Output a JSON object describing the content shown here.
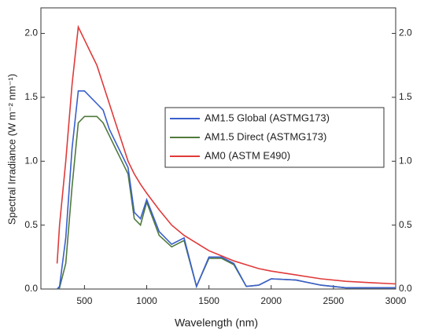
{
  "chart_data": {
    "type": "line",
    "x_label": "Wavelength (nm)",
    "y_label": "Spectral Irradiance (W m⁻² nm⁻¹)",
    "x": [
      280,
      300,
      350,
      400,
      450,
      500,
      550,
      600,
      650,
      700,
      750,
      800,
      850,
      900,
      950,
      1000,
      1100,
      1200,
      1300,
      1400,
      1500,
      1600,
      1700,
      1800,
      1900,
      2000,
      2200,
      2400,
      2600,
      2800,
      3000
    ],
    "series": [
      {
        "name": "AM1.5 Global (ASTMG173)",
        "color": "#3a5fcd",
        "values": [
          0,
          0.02,
          0.4,
          1.1,
          1.55,
          1.55,
          1.5,
          1.45,
          1.4,
          1.25,
          1.15,
          1.05,
          0.95,
          0.6,
          0.55,
          0.7,
          0.45,
          0.35,
          0.4,
          0.02,
          0.25,
          0.25,
          0.2,
          0.02,
          0.03,
          0.08,
          0.07,
          0.03,
          0.01,
          0.01,
          0.01
        ]
      },
      {
        "name": "AM1.5 Direct (ASTMG173)",
        "color": "#4f7a3c",
        "values": [
          0,
          0.01,
          0.2,
          0.8,
          1.3,
          1.35,
          1.35,
          1.35,
          1.3,
          1.2,
          1.1,
          1.0,
          0.9,
          0.55,
          0.5,
          0.68,
          0.42,
          0.33,
          0.38,
          0.02,
          0.24,
          0.24,
          0.19,
          0.02,
          0.03,
          0.08,
          0.07,
          0.03,
          0.01,
          0.01,
          0.01
        ]
      },
      {
        "name": "AM0 (ASTM E490)",
        "color": "#e03a3a",
        "values": [
          0.2,
          0.5,
          1.0,
          1.6,
          2.05,
          1.95,
          1.85,
          1.75,
          1.6,
          1.45,
          1.3,
          1.15,
          1.0,
          0.9,
          0.82,
          0.75,
          0.62,
          0.5,
          0.42,
          0.36,
          0.3,
          0.26,
          0.22,
          0.19,
          0.16,
          0.14,
          0.11,
          0.08,
          0.06,
          0.05,
          0.04
        ]
      }
    ],
    "xlim": [
      150,
      3000
    ],
    "xticks": [
      500,
      1000,
      1500,
      2000,
      2500,
      3000
    ],
    "ylim": [
      0,
      2.2
    ],
    "yticks": [
      {
        "value": 0,
        "label": "0.0"
      },
      {
        "value": 0.5,
        "label": "0.5"
      },
      {
        "value": 1,
        "label": "1.0"
      },
      {
        "value": 1.5,
        "label": "1.5"
      },
      {
        "value": 2,
        "label": "2.0"
      }
    ],
    "y2lim": [
      0,
      2.2
    ],
    "y2ticks": [
      {
        "value": 0,
        "label": "0.0"
      },
      {
        "value": 0.5,
        "label": "0.5"
      },
      {
        "value": 1,
        "label": "1.0"
      },
      {
        "value": 1.5,
        "label": "1.5"
      },
      {
        "value": 2,
        "label": "2.0"
      }
    ],
    "legend": "upper-right"
  }
}
